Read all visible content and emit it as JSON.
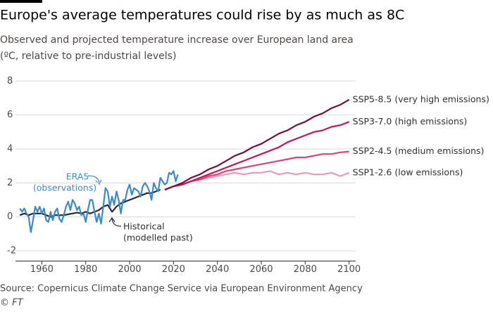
{
  "chart_data": {
    "type": "line",
    "title": "Europe's average temperatures could rise by as much as 8C",
    "subtitle": [
      "Observed and projected temperature increase over European land area",
      "(ºC, relative to pre-industrial levels)"
    ],
    "source": "Source: Copernicus Climate Change Service via European Environment Agency",
    "credit": "© FT",
    "xlim": [
      1948,
      2103
    ],
    "xticks": [
      1960,
      1980,
      2000,
      2020,
      2040,
      2060,
      2080,
      2100
    ],
    "ylim": [
      -2.6,
      8.3
    ],
    "yticks": [
      -2,
      0,
      2,
      4,
      6,
      8
    ],
    "grid": true,
    "series": [
      {
        "name": "Historical",
        "note": "(modelled past)",
        "color": "#262a33",
        "x": [
          1950,
          1952,
          1954,
          1956,
          1958,
          1960,
          1962,
          1964,
          1966,
          1968,
          1970,
          1972,
          1974,
          1976,
          1978,
          1980,
          1982,
          1984,
          1986,
          1988,
          1990,
          1992,
          1994,
          1996,
          1998,
          2000,
          2002,
          2004,
          2006,
          2008,
          2010,
          2012,
          2014
        ],
        "values": [
          0.1,
          0.2,
          0.1,
          0.2,
          0.2,
          0.2,
          0.1,
          0.0,
          0.1,
          0.1,
          0.1,
          0.15,
          0.2,
          0.25,
          0.2,
          0.3,
          0.2,
          0.3,
          0.4,
          0.6,
          0.7,
          0.3,
          0.6,
          0.8,
          0.9,
          1.0,
          1.1,
          1.2,
          1.3,
          1.4,
          1.4,
          1.5,
          1.6
        ]
      },
      {
        "name": "ERA5",
        "note": "(observations)",
        "color": "#3a8bc9",
        "x": [
          1950,
          1951,
          1952,
          1953,
          1954,
          1955,
          1956,
          1957,
          1958,
          1959,
          1960,
          1961,
          1962,
          1963,
          1964,
          1965,
          1966,
          1967,
          1968,
          1969,
          1970,
          1971,
          1972,
          1973,
          1974,
          1975,
          1976,
          1977,
          1978,
          1979,
          1980,
          1981,
          1982,
          1983,
          1984,
          1985,
          1986,
          1987,
          1988,
          1989,
          1990,
          1991,
          1992,
          1993,
          1994,
          1995,
          1996,
          1997,
          1998,
          1999,
          2000,
          2001,
          2002,
          2003,
          2004,
          2005,
          2006,
          2007,
          2008,
          2009,
          2010,
          2011,
          2012,
          2013,
          2014,
          2015,
          2016,
          2017,
          2018,
          2019,
          2020,
          2021,
          2022
        ],
        "values": [
          0.5,
          0.3,
          0.5,
          0.2,
          0.0,
          -0.9,
          -0.2,
          0.6,
          0.3,
          0.6,
          0.2,
          0.5,
          -0.2,
          -0.3,
          0.3,
          -0.2,
          0.3,
          0.5,
          -0.1,
          -0.3,
          0.1,
          0.6,
          0.9,
          0.4,
          1.0,
          0.8,
          0.4,
          0.6,
          0.1,
          0.2,
          -0.3,
          0.4,
          1.0,
          1.0,
          0.3,
          -0.3,
          0.2,
          -0.4,
          0.6,
          1.7,
          1.5,
          0.6,
          1.2,
          0.7,
          1.5,
          1.0,
          0.2,
          1.0,
          1.0,
          1.6,
          1.9,
          1.3,
          1.7,
          1.6,
          1.5,
          1.2,
          1.8,
          2.0,
          1.8,
          1.5,
          1.0,
          2.0,
          1.7,
          1.5,
          2.3,
          2.1,
          1.9,
          2.0,
          2.6,
          2.5,
          2.7,
          2.1,
          2.5
        ]
      },
      {
        "name": "SSP1-2.6 (low emissions)",
        "color": "#f097b5",
        "x": [
          2016,
          2020,
          2024,
          2028,
          2032,
          2036,
          2040,
          2044,
          2048,
          2052,
          2056,
          2060,
          2064,
          2068,
          2072,
          2076,
          2080,
          2084,
          2088,
          2092,
          2096,
          2100
        ],
        "values": [
          1.6,
          1.8,
          1.9,
          2.1,
          2.2,
          2.3,
          2.4,
          2.5,
          2.6,
          2.5,
          2.6,
          2.6,
          2.7,
          2.5,
          2.6,
          2.5,
          2.6,
          2.5,
          2.5,
          2.6,
          2.4,
          2.6
        ]
      },
      {
        "name": "SSP2-4.5 (medium emissions)",
        "color": "#e0407a",
        "x": [
          2016,
          2020,
          2024,
          2028,
          2032,
          2036,
          2040,
          2044,
          2048,
          2052,
          2056,
          2060,
          2064,
          2068,
          2072,
          2076,
          2080,
          2084,
          2088,
          2092,
          2096,
          2100
        ],
        "values": [
          1.6,
          1.8,
          1.9,
          2.1,
          2.2,
          2.4,
          2.5,
          2.7,
          2.8,
          2.9,
          3.0,
          3.1,
          3.2,
          3.3,
          3.4,
          3.5,
          3.5,
          3.6,
          3.7,
          3.7,
          3.8,
          3.85
        ]
      },
      {
        "name": "SSP3-7.0 (high emissions)",
        "color": "#c8125a",
        "x": [
          2016,
          2020,
          2024,
          2028,
          2032,
          2036,
          2040,
          2044,
          2048,
          2052,
          2056,
          2060,
          2064,
          2068,
          2072,
          2076,
          2080,
          2084,
          2088,
          2092,
          2096,
          2100
        ],
        "values": [
          1.6,
          1.8,
          1.9,
          2.1,
          2.3,
          2.5,
          2.7,
          2.9,
          3.1,
          3.3,
          3.5,
          3.7,
          3.9,
          4.1,
          4.4,
          4.6,
          4.8,
          5.0,
          5.1,
          5.3,
          5.4,
          5.6
        ]
      },
      {
        "name": "SSP5-8.5 (very high emissions)",
        "color": "#7a0c3a",
        "x": [
          2016,
          2020,
          2024,
          2028,
          2032,
          2036,
          2040,
          2044,
          2048,
          2052,
          2056,
          2060,
          2064,
          2068,
          2072,
          2076,
          2080,
          2084,
          2088,
          2092,
          2096,
          2100
        ],
        "values": [
          1.6,
          1.8,
          2.0,
          2.3,
          2.5,
          2.8,
          3.0,
          3.3,
          3.6,
          3.8,
          4.1,
          4.3,
          4.6,
          4.9,
          5.1,
          5.4,
          5.6,
          5.9,
          6.1,
          6.4,
          6.6,
          6.9
        ]
      }
    ]
  }
}
